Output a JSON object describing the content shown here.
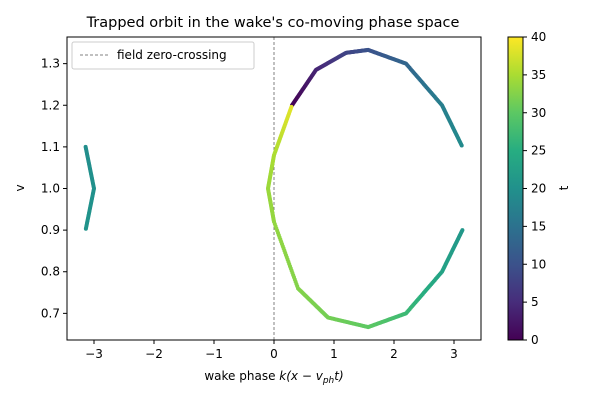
{
  "chart_data": {
    "type": "scatter",
    "title": "Trapped orbit in the wake's co-moving phase space",
    "xlabel_prefix": "wake phase ",
    "xlabel_math": "k(x − v",
    "xlabel_sub": "ph",
    "xlabel_suffix": "t)",
    "ylabel": "v",
    "xlim": [
      -3.45,
      3.45
    ],
    "ylim": [
      0.636,
      1.364
    ],
    "xticks": [
      -3,
      -2,
      -1,
      0,
      1,
      2,
      3
    ],
    "xtick_labels": [
      "−3",
      "−2",
      "−1",
      "0",
      "1",
      "2",
      "3"
    ],
    "yticks": [
      0.7,
      0.8,
      0.9,
      1.0,
      1.1,
      1.2,
      1.3
    ],
    "ytick_labels": [
      "0.7",
      "0.8",
      "0.9",
      "1.0",
      "1.1",
      "1.2",
      "1.3"
    ],
    "grid": false,
    "legend": {
      "position": "upper-left",
      "entries": [
        "field zero-crossing"
      ]
    },
    "annotations": [
      {
        "type": "vline",
        "x": 0,
        "style": "dashed",
        "color": "#808080",
        "label": "field zero-crossing"
      }
    ],
    "colorbar": {
      "label": "t",
      "range": [
        0,
        40
      ],
      "ticks": [
        0,
        5,
        10,
        15,
        20,
        25,
        30,
        35,
        40
      ],
      "tick_labels": [
        "0",
        "5",
        "10",
        "15",
        "20",
        "25",
        "30",
        "35",
        "40"
      ],
      "colormap": "viridis"
    },
    "series": [
      {
        "description_of_curve": "separatrix-like orbit",
        "points": [
          {
            "x": 0.3,
            "y": 1.2,
            "t": 0
          },
          {
            "x": 0.7,
            "y": 1.285,
            "t": 4
          },
          {
            "x": 1.2,
            "y": 1.326,
            "t": 8
          },
          {
            "x": 1.57,
            "y": 1.333,
            "t": 10
          },
          {
            "x": 2.2,
            "y": 1.3,
            "t": 13
          },
          {
            "x": 2.8,
            "y": 1.2,
            "t": 17
          },
          {
            "x": 3.14,
            "y": 1.1,
            "t": 19
          },
          {
            "x": -3.14,
            "y": 1.1,
            "t": 19.5
          },
          {
            "x": -3.0,
            "y": 1.0,
            "t": 20
          },
          {
            "x": -3.14,
            "y": 0.9,
            "t": 20.5
          },
          {
            "x": 3.14,
            "y": 0.9,
            "t": 21
          },
          {
            "x": 2.8,
            "y": 0.8,
            "t": 23
          },
          {
            "x": 2.2,
            "y": 0.7,
            "t": 27
          },
          {
            "x": 1.57,
            "y": 0.667,
            "t": 30
          },
          {
            "x": 0.9,
            "y": 0.69,
            "t": 31.5
          },
          {
            "x": 0.4,
            "y": 0.76,
            "t": 32.5
          },
          {
            "x": 0.0,
            "y": 0.92,
            "t": 33.5
          },
          {
            "x": -0.1,
            "y": 1.0,
            "t": 34
          },
          {
            "x": 0.0,
            "y": 1.08,
            "t": 35
          },
          {
            "x": 0.3,
            "y": 1.2,
            "t": 38.5
          }
        ]
      }
    ],
    "colors": {
      "vline": "#808080",
      "axes": "#000000",
      "background": "#ffffff"
    }
  }
}
